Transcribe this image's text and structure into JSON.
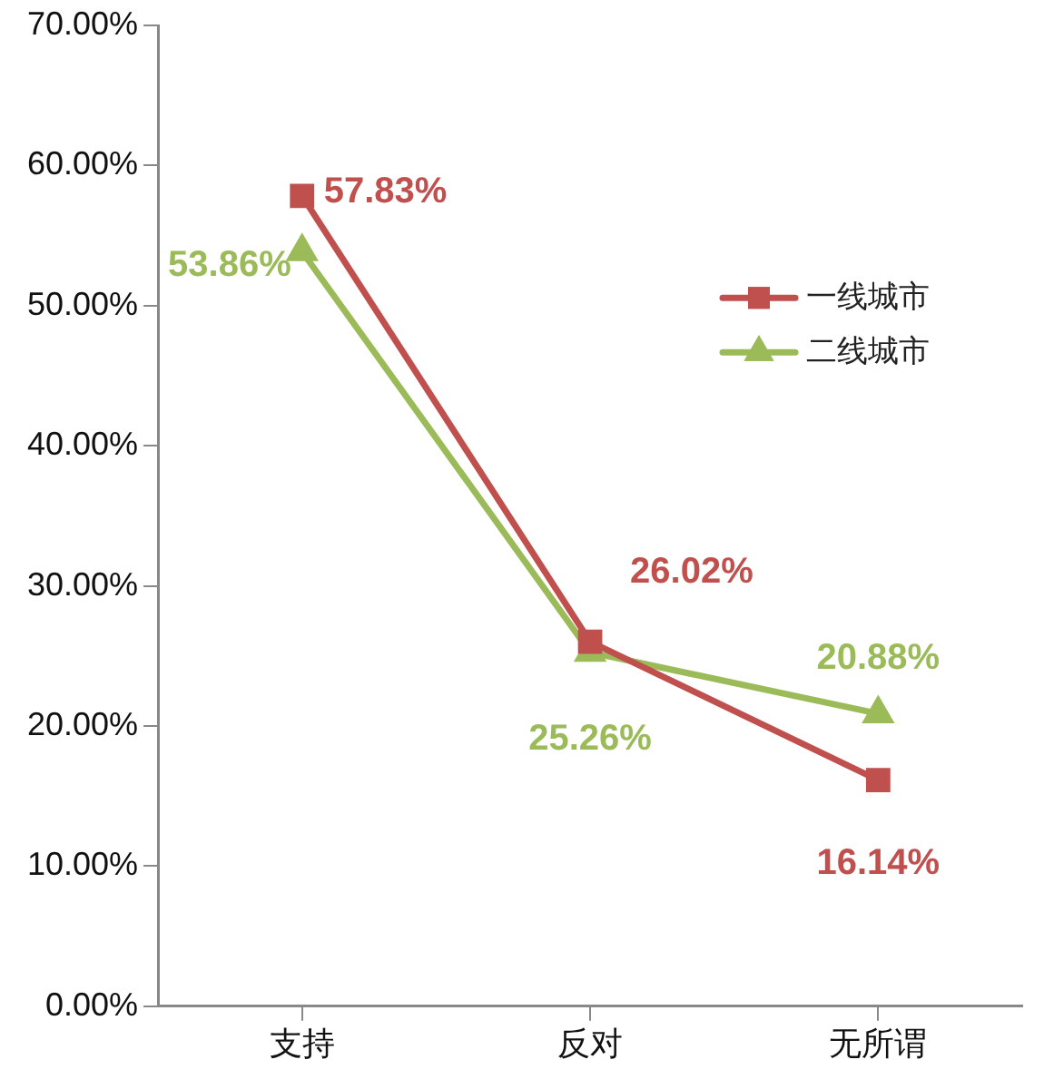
{
  "chart_data": {
    "type": "line",
    "categories": [
      "支持",
      "反对",
      "无所谓"
    ],
    "series": [
      {
        "name": "一线城市",
        "color": "#c0504d",
        "marker": "square",
        "values": [
          57.83,
          26.02,
          16.14
        ],
        "value_labels": [
          "57.83%",
          "26.02%",
          "16.14%"
        ]
      },
      {
        "name": "二线城市",
        "color": "#9bbb59",
        "marker": "triangle",
        "values": [
          53.86,
          25.26,
          20.88
        ],
        "value_labels": [
          "53.86%",
          "25.26%",
          "20.88%"
        ]
      }
    ],
    "ylim": [
      0,
      70
    ],
    "yticks": [
      {
        "value": 0,
        "label": "0.00%"
      },
      {
        "value": 10,
        "label": "10.00%"
      },
      {
        "value": 20,
        "label": "20.00%"
      },
      {
        "value": 30,
        "label": "30.00%"
      },
      {
        "value": 40,
        "label": "40.00%"
      },
      {
        "value": 50,
        "label": "50.00%"
      },
      {
        "value": 60,
        "label": "60.00%"
      },
      {
        "value": 70,
        "label": "70.00%"
      }
    ],
    "grid": false,
    "legend": "right",
    "line_style": "solid"
  }
}
